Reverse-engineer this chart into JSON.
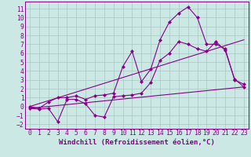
{
  "xlabel": "Windchill (Refroidissement éolien,°C)",
  "bg_color": "#cce8e4",
  "grid_color": "#a8c8c4",
  "line_color": "#880088",
  "spine_color": "#880088",
  "x_ticks": [
    0,
    1,
    2,
    3,
    4,
    5,
    6,
    7,
    8,
    9,
    10,
    11,
    12,
    13,
    14,
    15,
    16,
    17,
    18,
    19,
    20,
    21,
    22,
    23
  ],
  "y_ticks": [
    -2,
    -1,
    0,
    1,
    2,
    3,
    4,
    5,
    6,
    7,
    8,
    9,
    10,
    11
  ],
  "ylim": [
    -2.5,
    11.8
  ],
  "xlim": [
    -0.5,
    23.5
  ],
  "line1_x": [
    0,
    1,
    2,
    3,
    4,
    5,
    6,
    7,
    8,
    9,
    10,
    11,
    12,
    13,
    14,
    15,
    16,
    17,
    18,
    19,
    20,
    21,
    22,
    23
  ],
  "line1_y": [
    0.0,
    -0.2,
    0.5,
    1.0,
    1.0,
    1.2,
    0.8,
    1.2,
    1.3,
    1.5,
    4.5,
    6.2,
    2.8,
    4.2,
    7.5,
    9.5,
    10.5,
    11.2,
    10.0,
    7.0,
    7.0,
    6.5,
    3.0,
    2.5
  ],
  "line2_x": [
    0,
    1,
    2,
    3,
    4,
    5,
    6,
    7,
    8,
    9,
    10,
    11,
    12,
    13,
    14,
    15,
    16,
    17,
    18,
    19,
    20,
    21,
    22,
    23
  ],
  "line2_y": [
    -0.2,
    -0.3,
    -0.2,
    -1.7,
    0.8,
    0.8,
    0.3,
    -1.0,
    -1.2,
    1.1,
    1.2,
    1.3,
    1.5,
    2.7,
    5.2,
    6.0,
    7.3,
    7.0,
    6.5,
    6.2,
    7.3,
    6.3,
    3.1,
    2.2
  ],
  "line3_x": [
    0,
    23
  ],
  "line3_y": [
    -0.2,
    2.2
  ],
  "line4_x": [
    0,
    23
  ],
  "line4_y": [
    0.0,
    7.5
  ],
  "marker_size": 2.5,
  "lw": 0.8,
  "font_size": 6.5,
  "tick_font_size": 5.8
}
